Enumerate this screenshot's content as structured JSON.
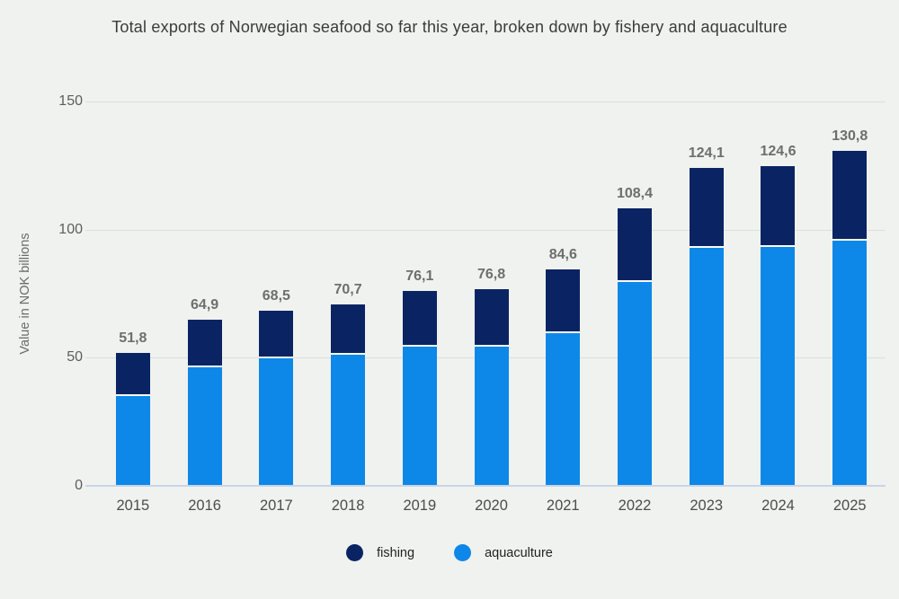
{
  "chart_data": {
    "type": "bar",
    "stacked": true,
    "title": "Total exports of Norwegian seafood so far this year, broken down by fishery and aquaculture",
    "ylabel": "Value in NOK billions",
    "ylim": [
      0,
      150
    ],
    "yticks": [
      0,
      50,
      100,
      150
    ],
    "grid": "horizontal",
    "legend_position": "bottom-center",
    "decimal_separator": ",",
    "categories": [
      "2015",
      "2016",
      "2017",
      "2018",
      "2019",
      "2020",
      "2021",
      "2022",
      "2023",
      "2024",
      "2025"
    ],
    "series": [
      {
        "name": "fishing",
        "color": "#0a2463",
        "values": [
          16.8,
          18.6,
          18.7,
          19.4,
          21.8,
          22.6,
          25.0,
          28.9,
          31.1,
          31.4,
          35.2
        ]
      },
      {
        "name": "aquaculture",
        "color": "#0d88e8",
        "values": [
          35.0,
          46.3,
          49.8,
          51.3,
          54.3,
          54.2,
          59.6,
          79.5,
          93.0,
          93.2,
          95.6
        ]
      }
    ],
    "totals": [
      51.8,
      64.9,
      68.5,
      70.7,
      76.1,
      76.8,
      84.6,
      108.4,
      124.1,
      124.6,
      130.8
    ],
    "total_labels": [
      "51,8",
      "64,9",
      "68,5",
      "70,7",
      "76,1",
      "76,8",
      "84,6",
      "108,4",
      "124,1",
      "124,6",
      "130,8"
    ]
  },
  "colors": {
    "background": "#f0f2ef",
    "gridline": "#dddfda",
    "axis_line": "#c8d4e8",
    "title_text": "#3b3b3b",
    "tick_text": "#5d5d5d",
    "bar_label_text": "#6e6e6e"
  }
}
